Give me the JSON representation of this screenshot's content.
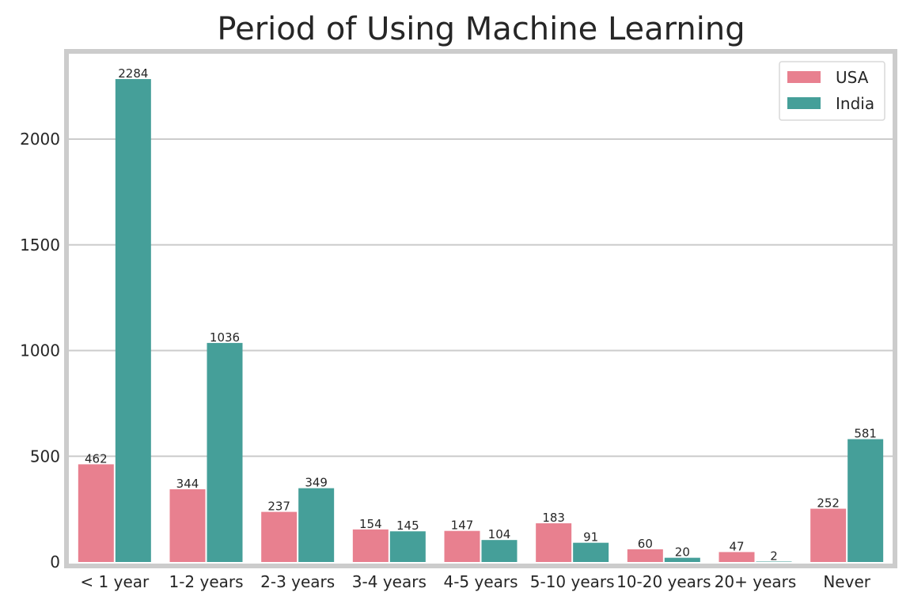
{
  "chart_data": {
    "type": "bar",
    "title": "Period of Using Machine Learning",
    "xlabel": "",
    "ylabel": "",
    "categories": [
      "< 1 year",
      "1-2 years",
      "2-3 years",
      "3-4 years",
      "4-5 years",
      "5-10 years",
      "10-20 years",
      "20+ years",
      "Never"
    ],
    "series": [
      {
        "name": "USA",
        "color": "#e8808f",
        "values": [
          462,
          344,
          237,
          154,
          147,
          183,
          60,
          47,
          252
        ]
      },
      {
        "name": "India",
        "color": "#459f99",
        "values": [
          2284,
          1036,
          349,
          145,
          104,
          91,
          20,
          2,
          581
        ]
      }
    ],
    "yticks": [
      0,
      500,
      1000,
      1500,
      2000
    ],
    "ylim": [
      0,
      2398
    ],
    "grid": true,
    "legend_position": "top-right"
  }
}
